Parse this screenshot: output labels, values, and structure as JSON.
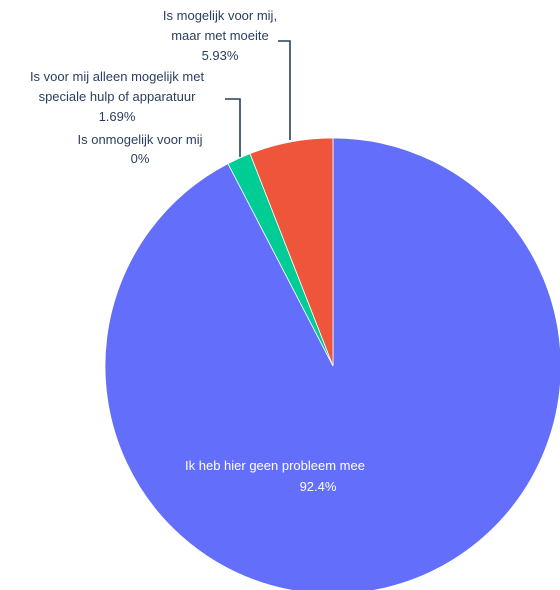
{
  "chart_data": {
    "type": "pie",
    "title": "",
    "direction": "clockwise",
    "start_angle_deg": 0,
    "slices": [
      {
        "label": "Ik heb hier geen probleem mee",
        "value": 92.4,
        "value_label": "92.4%",
        "color": "#636efa"
      },
      {
        "label": "Is onmogelijk voor mij",
        "value": 0,
        "value_label": "0%",
        "color": "#ab63fa"
      },
      {
        "label": "Is voor mij alleen mogelijk met speciale hulp of apparatuur",
        "value": 1.69,
        "value_label": "1.69%",
        "color": "#00cc96"
      },
      {
        "label": "Is mogelijk voor mij, maar met moeite",
        "value": 5.93,
        "value_label": "5.93%",
        "color": "#ef553b"
      }
    ],
    "legend": false
  }
}
